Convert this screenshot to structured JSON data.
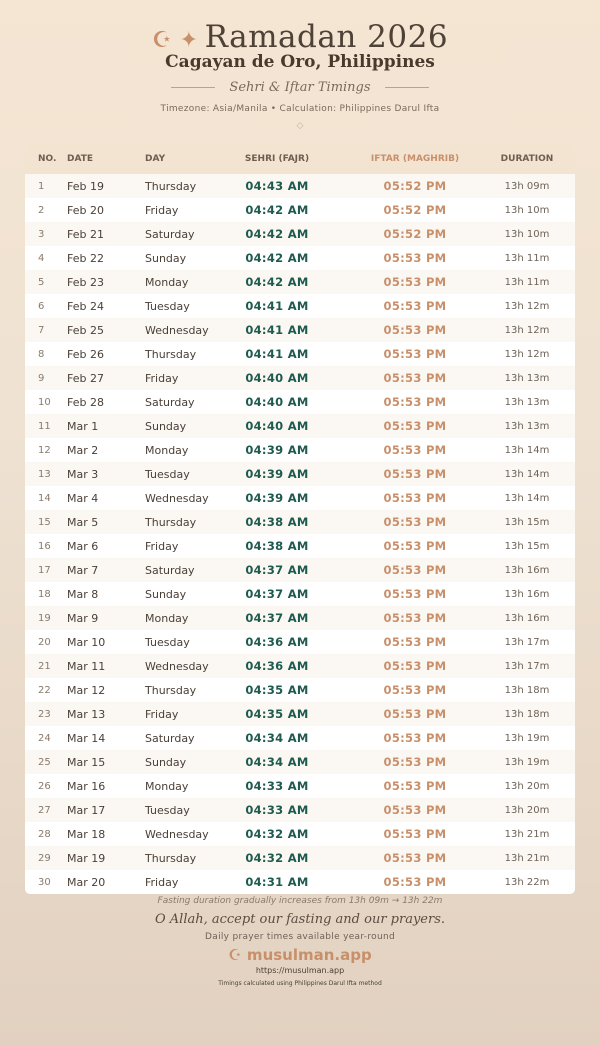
{
  "header": {
    "icons": "☪ ✦",
    "title": "Ramadan 2026",
    "city": "Cagayan de Oro, Philippines",
    "subtitle": "Sehri & Iftar Timings",
    "info": "Timezone: Asia/Manila • Calculation: Philippines Darul Ifta",
    "ornament": "◇"
  },
  "colors": {
    "accent": "#c8906a",
    "sehri": "#1f5a4f",
    "header_bg": "#f3e3d1"
  },
  "table": {
    "columns": [
      "NO.",
      "DATE",
      "DAY",
      "SEHRI (FAJR)",
      "IFTAR (MAGHRIB)",
      "DURATION"
    ],
    "rows": [
      [
        "1",
        "Feb 19",
        "Thursday",
        "04:43 AM",
        "05:52 PM",
        "13h 09m"
      ],
      [
        "2",
        "Feb 20",
        "Friday",
        "04:42 AM",
        "05:52 PM",
        "13h 10m"
      ],
      [
        "3",
        "Feb 21",
        "Saturday",
        "04:42 AM",
        "05:52 PM",
        "13h 10m"
      ],
      [
        "4",
        "Feb 22",
        "Sunday",
        "04:42 AM",
        "05:53 PM",
        "13h 11m"
      ],
      [
        "5",
        "Feb 23",
        "Monday",
        "04:42 AM",
        "05:53 PM",
        "13h 11m"
      ],
      [
        "6",
        "Feb 24",
        "Tuesday",
        "04:41 AM",
        "05:53 PM",
        "13h 12m"
      ],
      [
        "7",
        "Feb 25",
        "Wednesday",
        "04:41 AM",
        "05:53 PM",
        "13h 12m"
      ],
      [
        "8",
        "Feb 26",
        "Thursday",
        "04:41 AM",
        "05:53 PM",
        "13h 12m"
      ],
      [
        "9",
        "Feb 27",
        "Friday",
        "04:40 AM",
        "05:53 PM",
        "13h 13m"
      ],
      [
        "10",
        "Feb 28",
        "Saturday",
        "04:40 AM",
        "05:53 PM",
        "13h 13m"
      ],
      [
        "11",
        "Mar 1",
        "Sunday",
        "04:40 AM",
        "05:53 PM",
        "13h 13m"
      ],
      [
        "12",
        "Mar 2",
        "Monday",
        "04:39 AM",
        "05:53 PM",
        "13h 14m"
      ],
      [
        "13",
        "Mar 3",
        "Tuesday",
        "04:39 AM",
        "05:53 PM",
        "13h 14m"
      ],
      [
        "14",
        "Mar 4",
        "Wednesday",
        "04:39 AM",
        "05:53 PM",
        "13h 14m"
      ],
      [
        "15",
        "Mar 5",
        "Thursday",
        "04:38 AM",
        "05:53 PM",
        "13h 15m"
      ],
      [
        "16",
        "Mar 6",
        "Friday",
        "04:38 AM",
        "05:53 PM",
        "13h 15m"
      ],
      [
        "17",
        "Mar 7",
        "Saturday",
        "04:37 AM",
        "05:53 PM",
        "13h 16m"
      ],
      [
        "18",
        "Mar 8",
        "Sunday",
        "04:37 AM",
        "05:53 PM",
        "13h 16m"
      ],
      [
        "19",
        "Mar 9",
        "Monday",
        "04:37 AM",
        "05:53 PM",
        "13h 16m"
      ],
      [
        "20",
        "Mar 10",
        "Tuesday",
        "04:36 AM",
        "05:53 PM",
        "13h 17m"
      ],
      [
        "21",
        "Mar 11",
        "Wednesday",
        "04:36 AM",
        "05:53 PM",
        "13h 17m"
      ],
      [
        "22",
        "Mar 12",
        "Thursday",
        "04:35 AM",
        "05:53 PM",
        "13h 18m"
      ],
      [
        "23",
        "Mar 13",
        "Friday",
        "04:35 AM",
        "05:53 PM",
        "13h 18m"
      ],
      [
        "24",
        "Mar 14",
        "Saturday",
        "04:34 AM",
        "05:53 PM",
        "13h 19m"
      ],
      [
        "25",
        "Mar 15",
        "Sunday",
        "04:34 AM",
        "05:53 PM",
        "13h 19m"
      ],
      [
        "26",
        "Mar 16",
        "Monday",
        "04:33 AM",
        "05:53 PM",
        "13h 20m"
      ],
      [
        "27",
        "Mar 17",
        "Tuesday",
        "04:33 AM",
        "05:53 PM",
        "13h 20m"
      ],
      [
        "28",
        "Mar 18",
        "Wednesday",
        "04:32 AM",
        "05:53 PM",
        "13h 21m"
      ],
      [
        "29",
        "Mar 19",
        "Thursday",
        "04:32 AM",
        "05:53 PM",
        "13h 21m"
      ],
      [
        "30",
        "Mar 20",
        "Friday",
        "04:31 AM",
        "05:53 PM",
        "13h 22m"
      ]
    ]
  },
  "footer": {
    "note": "Fasting duration gradually increases from 13h 09m → 13h 22m",
    "dua": "O Allah, accept our fasting and our prayers.",
    "tagline": "Daily prayer times available year-round",
    "brand": "☪ musulman.app",
    "url": "https://musulman.app",
    "method": "Timings calculated using Philippines Darul Ifta method"
  }
}
